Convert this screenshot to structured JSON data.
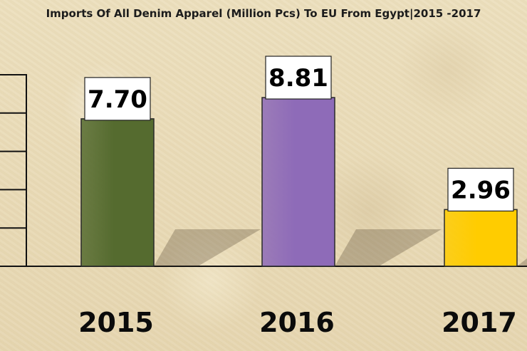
{
  "chart_data": {
    "type": "bar",
    "title": "Imports Of All Denim Apparel (Million Pcs) To EU From Egypt|2015 -2017",
    "categories": [
      "2015",
      "2016",
      "2017"
    ],
    "values": [
      7.7,
      8.81,
      2.96
    ],
    "value_labels": [
      "7.70",
      "8.81",
      "2.96"
    ],
    "colors": [
      "#556b2f",
      "#8e6bb8",
      "#ffcc00"
    ],
    "ylim": [
      0,
      10
    ],
    "y_tick_values": [
      0,
      2,
      4,
      6,
      8,
      10
    ],
    "grid": false,
    "legend": "none"
  }
}
